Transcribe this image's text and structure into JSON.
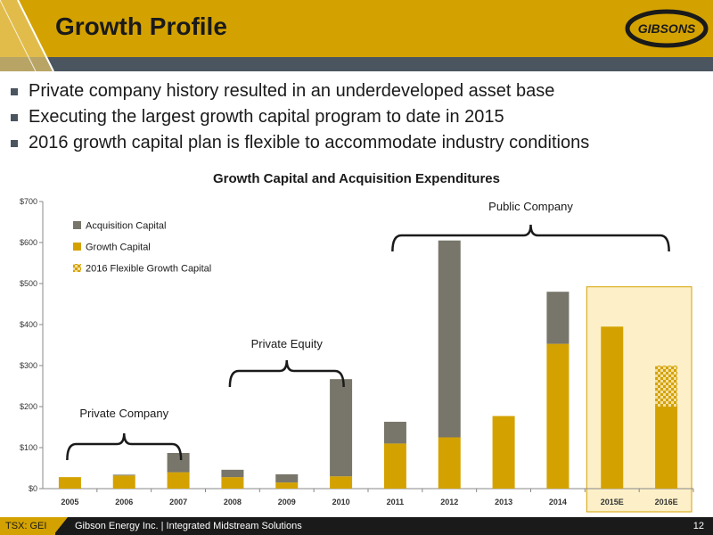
{
  "header": {
    "title": "Growth Profile"
  },
  "logo": {
    "text": "GIBSONS"
  },
  "bullets": [
    "Private company history resulted in an underdeveloped asset base",
    "Executing the largest growth capital program to date in 2015",
    "2016 growth capital plan is flexible to accommodate industry conditions"
  ],
  "colors": {
    "gold": "#d4a200",
    "gray": "#78766a",
    "dark": "#4a5560",
    "highlight": "#fdf0c8"
  },
  "chart_data": {
    "type": "bar",
    "stacked": true,
    "title": "Growth Capital and Acquisition Expenditures",
    "categories": [
      "2005",
      "2006",
      "2007",
      "2008",
      "2009",
      "2010",
      "2011",
      "2012",
      "2013",
      "2014",
      "2015E",
      "2016E"
    ],
    "series": [
      {
        "name": "Growth Capital",
        "color": "#d4a200",
        "values": [
          28,
          32,
          40,
          28,
          15,
          30,
          110,
          125,
          177,
          353,
          395,
          200
        ]
      },
      {
        "name": "Acquisition Capital",
        "color": "#78766a",
        "values": [
          0,
          2,
          47,
          18,
          20,
          237,
          53,
          480,
          0,
          127,
          0,
          0
        ]
      },
      {
        "name": "2016 Flexible Growth Capital",
        "pattern": "checker",
        "values": [
          0,
          0,
          0,
          0,
          0,
          0,
          0,
          0,
          0,
          0,
          0,
          100
        ]
      }
    ],
    "yticks": [
      "$0",
      "$100",
      "$200",
      "$300",
      "$400",
      "$500",
      "$600",
      "$700"
    ],
    "ylim": [
      0,
      700
    ],
    "legend_position": "top-left",
    "highlighted_categories": [
      "2015E",
      "2016E"
    ],
    "annotations": [
      {
        "text": "Private Company",
        "from": "2005",
        "to": "2007"
      },
      {
        "text": "Private Equity",
        "from": "2008",
        "to": "2010"
      },
      {
        "text": "Public Company",
        "from": "2011",
        "to": "2016E"
      }
    ]
  },
  "footer": {
    "ticker": "TSX: GEI",
    "company": "Gibson Energy Inc.   |   Integrated Midstream Solutions",
    "page": "12"
  }
}
